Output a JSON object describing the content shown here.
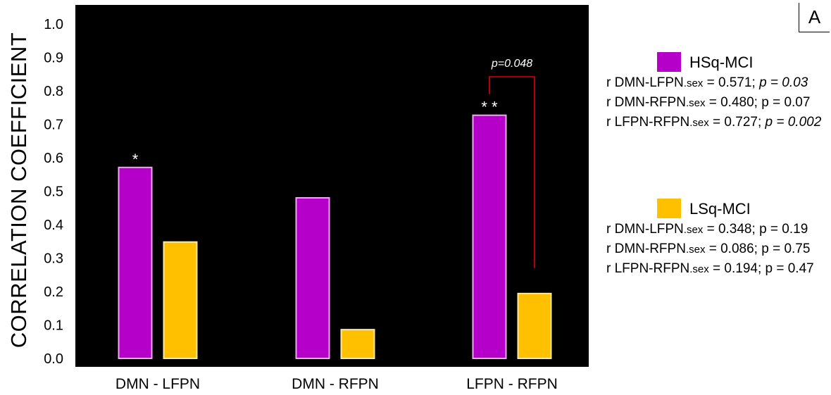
{
  "panel_label": "A",
  "chart_data": {
    "type": "bar",
    "title": "",
    "xlabel": "",
    "ylabel": "CORRELATION COEFFICIENT",
    "ylim": [
      0.0,
      1.05
    ],
    "yticks": [
      "0.0",
      "0.1",
      "0.2",
      "0.3",
      "0.4",
      "0.5",
      "0.6",
      "0.7",
      "0.8",
      "0.9",
      "1.0"
    ],
    "categories": [
      "DMN - LFPN",
      "DMN - RFPN",
      "LFPN - RFPN"
    ],
    "series": [
      {
        "name": "HSq-MCI",
        "color": "#b400c8",
        "values": [
          0.571,
          0.48,
          0.727
        ],
        "significance": [
          "*",
          "",
          "**"
        ]
      },
      {
        "name": "LSq-MCI",
        "color": "#ffc000",
        "values": [
          0.348,
          0.086,
          0.194
        ],
        "significance": [
          "",
          "",
          ""
        ]
      }
    ],
    "background": "#000000",
    "grid": false,
    "legend_position": "right",
    "annotations": [
      {
        "text": "p=0.048",
        "category": "LFPN - RFPN",
        "type": "bracket",
        "color": "#e00000"
      }
    ]
  },
  "legend": [
    {
      "name": "HSq-MCI",
      "color": "#b400c8",
      "stats": [
        {
          "pre": "r DMN-LFPN",
          "sub": ".sex",
          "post": " = 0.571; ",
          "p_text": "p = 0.03",
          "p_italic": true
        },
        {
          "pre": "r DMN-RFPN",
          "sub": ".sex",
          "post": " = 0.480; ",
          "p_text": "p = 0.07",
          "p_italic": false
        },
        {
          "pre": "r LFPN-RFPN",
          "sub": ".sex",
          "post": " = 0.727; ",
          "p_text": "p = 0.002",
          "p_italic": true
        }
      ]
    },
    {
      "name": "LSq-MCI",
      "color": "#ffc000",
      "stats": [
        {
          "pre": "r DMN-LFPN",
          "sub": ".sex",
          "post": " = 0.348; ",
          "p_text": "p = 0.19",
          "p_italic": false
        },
        {
          "pre": "r DMN-RFPN",
          "sub": ".sex",
          "post": " = 0.086; ",
          "p_text": "p = 0.75",
          "p_italic": false
        },
        {
          "pre": "r LFPN-RFPN",
          "sub": ".sex",
          "post": " = 0.194; ",
          "p_text": "p = 0.47",
          "p_italic": false
        }
      ]
    }
  ]
}
